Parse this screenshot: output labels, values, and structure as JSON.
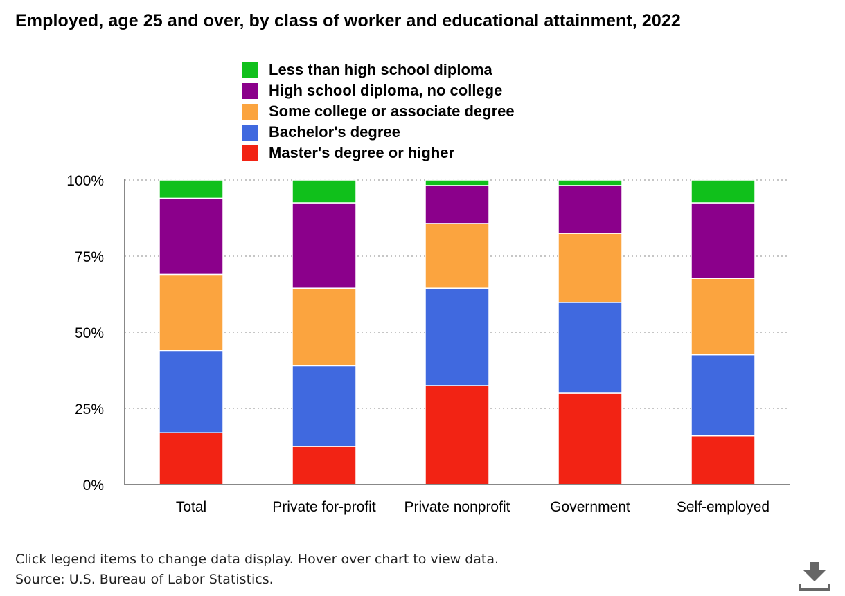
{
  "title": "Employed, age 25 and over, by class of worker and educational attainment, 2022",
  "footer": {
    "note": "Click legend items to change data display. Hover over chart to view data.",
    "source": "Source: U.S. Bureau of Labor Statistics."
  },
  "download_icon": "download-icon",
  "chart_data": {
    "type": "bar",
    "stacked": true,
    "title": "Employed, age 25 and over, by class of worker and educational attainment, 2022",
    "xlabel": "",
    "ylabel": "",
    "ylim": [
      0,
      100
    ],
    "yticks": [
      "0%",
      "25%",
      "50%",
      "75%",
      "100%"
    ],
    "ytick_values": [
      0,
      25,
      50,
      75,
      100
    ],
    "grid": true,
    "legend_position": "top-center",
    "categories": [
      "Total",
      "Private for-profit",
      "Private nonprofit",
      "Government",
      "Self-employed"
    ],
    "series": [
      {
        "name": "Master's degree or higher",
        "color": "#f22314",
        "values": [
          17,
          12.5,
          32.5,
          30,
          16
        ]
      },
      {
        "name": "Bachelor's degree",
        "color": "#4069df",
        "values": [
          27,
          26.5,
          32,
          29.8,
          26.6
        ]
      },
      {
        "name": "Some college or associate degree",
        "color": "#fba43f",
        "values": [
          25,
          25.5,
          21.2,
          22.7,
          25.1
        ]
      },
      {
        "name": "High school diploma, no college",
        "color": "#8b008b",
        "values": [
          25,
          28,
          12.5,
          15.7,
          24.8
        ]
      },
      {
        "name": "Less than high school diploma",
        "color": "#10c01b",
        "values": [
          6,
          7.5,
          1.8,
          1.8,
          7.5
        ]
      }
    ]
  }
}
